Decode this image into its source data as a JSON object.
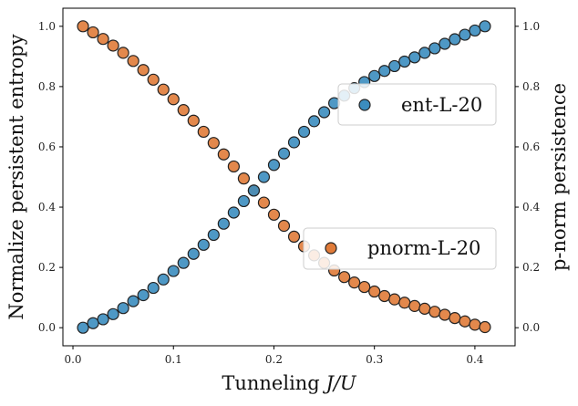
{
  "chart_data": {
    "type": "scatter",
    "x": [
      0.01,
      0.02,
      0.03,
      0.04,
      0.05,
      0.06,
      0.07,
      0.08,
      0.09,
      0.1,
      0.11,
      0.12,
      0.13,
      0.14,
      0.15,
      0.16,
      0.17,
      0.18,
      0.19,
      0.2,
      0.21,
      0.22,
      0.23,
      0.24,
      0.25,
      0.26,
      0.27,
      0.28,
      0.29,
      0.3,
      0.31,
      0.32,
      0.33,
      0.34,
      0.35,
      0.36,
      0.37,
      0.38,
      0.39,
      0.4,
      0.41
    ],
    "series": [
      {
        "name": "ent-L-20",
        "axis": "left",
        "color": "#3b8dbf",
        "values": [
          0.0,
          0.015,
          0.028,
          0.045,
          0.065,
          0.088,
          0.108,
          0.132,
          0.16,
          0.188,
          0.215,
          0.245,
          0.275,
          0.308,
          0.345,
          0.382,
          0.42,
          0.455,
          0.5,
          0.54,
          0.578,
          0.615,
          0.65,
          0.685,
          0.715,
          0.745,
          0.77,
          0.795,
          0.815,
          0.835,
          0.852,
          0.868,
          0.883,
          0.897,
          0.912,
          0.927,
          0.942,
          0.957,
          0.972,
          0.986,
          1.0
        ]
      },
      {
        "name": "pnorm-L-20",
        "axis": "right",
        "color": "#e07b39",
        "values": [
          1.0,
          0.98,
          0.958,
          0.936,
          0.912,
          0.885,
          0.855,
          0.823,
          0.79,
          0.758,
          0.722,
          0.687,
          0.65,
          0.613,
          0.575,
          0.535,
          0.495,
          0.455,
          0.415,
          0.375,
          0.338,
          0.302,
          0.27,
          0.24,
          0.215,
          0.19,
          0.168,
          0.15,
          0.135,
          0.12,
          0.105,
          0.094,
          0.083,
          0.072,
          0.063,
          0.053,
          0.043,
          0.032,
          0.021,
          0.01,
          0.002
        ]
      }
    ],
    "xlabel": "Tunneling J/U",
    "ylabel_left": "Normalize persistent entropy",
    "ylabel_right": "p-norm persistence",
    "xlim": [
      -0.01,
      0.44
    ],
    "ylim": [
      -0.06,
      1.06
    ],
    "x_ticks": [
      0.0,
      0.1,
      0.2,
      0.3,
      0.4
    ],
    "x_tick_labels": [
      "0.0",
      "0.1",
      "0.2",
      "0.3",
      "0.4"
    ],
    "y_ticks": [
      0.0,
      0.2,
      0.4,
      0.6,
      0.8,
      1.0
    ],
    "y_tick_labels": [
      "0.0",
      "0.2",
      "0.4",
      "0.6",
      "0.8",
      "1.0"
    ],
    "grid": false,
    "legends": [
      {
        "label": "ent-L-20",
        "color": "#3b8dbf",
        "placement": "upper-right"
      },
      {
        "label": "pnorm-L-20",
        "color": "#e07b39",
        "placement": "lower-right"
      }
    ]
  }
}
